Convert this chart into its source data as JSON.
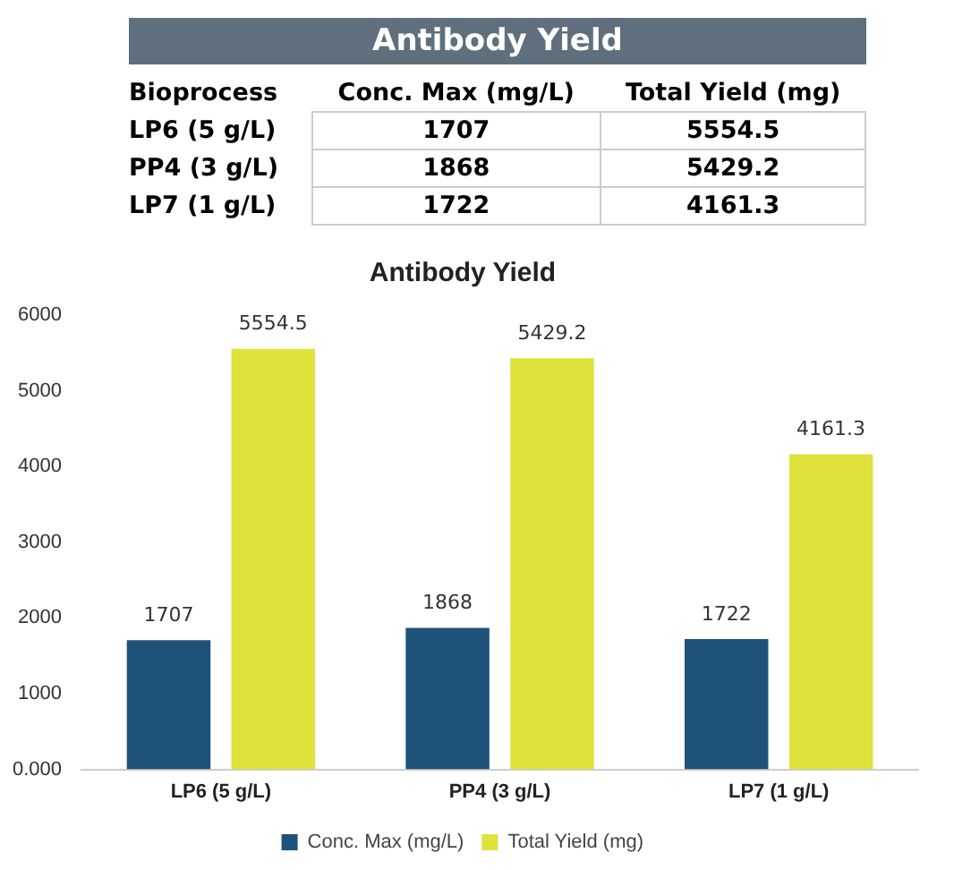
{
  "chart_data": {
    "type": "bar",
    "title": "Antibody Yield",
    "annotations": [
      "Bioprocess",
      "1707",
      "5554.5",
      "1868",
      "5429.2",
      "1722",
      "4161.3"
    ],
    "categories": [
      "LP6 (5 g/L)",
      "PP4 (3 g/L)",
      "LP7 (1 g/L)"
    ],
    "series": [
      {
        "name": "Conc. Max (mg/L)",
        "color": "#1f5279",
        "values": [
          1707,
          1868,
          1722
        ]
      },
      {
        "name": "Total Yield (mg)",
        "color": "#dfe23a",
        "values": [
          5554.5,
          5429.2,
          4161.3
        ]
      }
    ],
    "ylim": [
      0,
      6000
    ],
    "yticks": [
      {
        "value": 0,
        "label": "0.000"
      },
      1000,
      2000,
      3000,
      4000,
      5000,
      6000
    ],
    "grid": false,
    "legend": "bottom",
    "data_labels": true
  }
}
